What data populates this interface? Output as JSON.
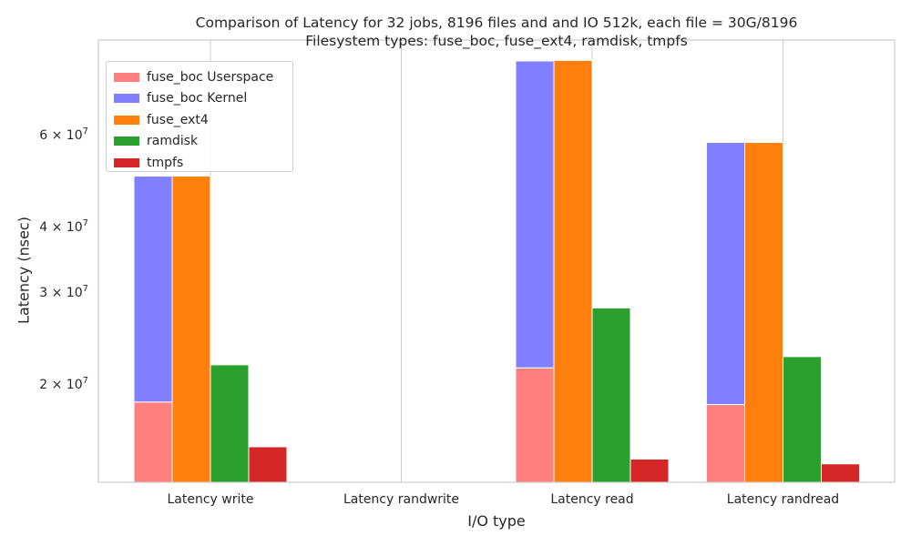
{
  "chart_data": {
    "type": "bar",
    "title": "Comparison of Latency for 32 jobs, 8196 files and  and IO 512k, each file = 30G/8196",
    "subtitle": "Filesystem types: fuse_boc, fuse_ext4, ramdisk, tmpfs",
    "xlabel": "I/O type",
    "ylabel": "Latency (nsec)",
    "yscale": "log",
    "ylim": [
      13000000,
      91000000
    ],
    "grid": true,
    "legend_position": "top-left",
    "categories": [
      "Latency write",
      "Latency randwrite",
      "Latency read",
      "Latency randread"
    ],
    "series": [
      {
        "name": "fuse_boc Userspace",
        "color": "#ff7f7f",
        "values": [
          18500000,
          null,
          21500000,
          18300000
        ]
      },
      {
        "name": "fuse_boc Kernel",
        "color": "#7f7fff",
        "values": [
          50000000,
          null,
          83000000,
          58000000
        ]
      },
      {
        "name": "fuse_ext4",
        "color": "#ff7f0e",
        "values": [
          50000000,
          null,
          83200000,
          58000000
        ]
      },
      {
        "name": "ramdisk",
        "color": "#2ca02c",
        "values": [
          21800000,
          null,
          28000000,
          22600000
        ]
      },
      {
        "name": "tmpfs",
        "color": "#d62728",
        "values": [
          15200000,
          null,
          14400000,
          14100000
        ]
      }
    ],
    "stacked_pair": [
      "fuse_boc Userspace",
      "fuse_boc Kernel"
    ],
    "yticks": [
      {
        "value": 20000000,
        "mantissa": "2",
        "exp": "7"
      },
      {
        "value": 30000000,
        "mantissa": "3",
        "exp": "7"
      },
      {
        "value": 40000000,
        "mantissa": "4",
        "exp": "7"
      },
      {
        "value": 60000000,
        "mantissa": "6",
        "exp": "7"
      }
    ],
    "grid_color": "#cccccc",
    "spine_color": "#cccccc",
    "bar_edge_color": "#ffffff"
  }
}
